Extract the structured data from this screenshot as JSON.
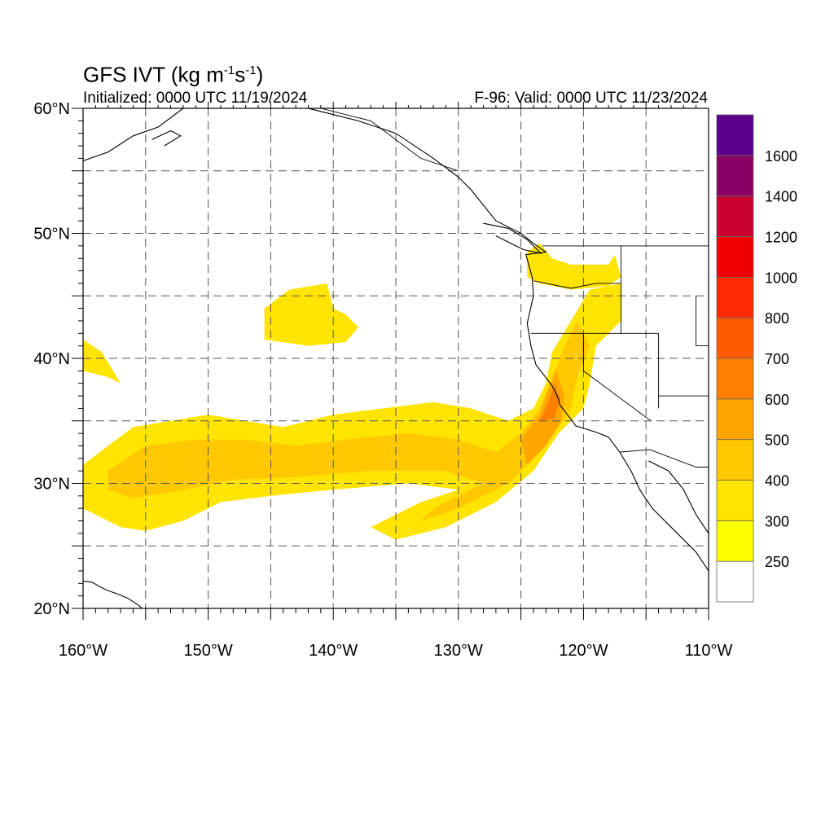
{
  "title": {
    "main": "GFS IVT (kg m",
    "exp1": "-1",
    "mid": "s",
    "exp2": "-1",
    "close": ")"
  },
  "init_label": "Initialized: 0000 UTC 11/19/2024",
  "valid_label": "F-96: Valid: 0000 UTC 11/23/2024",
  "map": {
    "lon_range": [
      -160,
      -110
    ],
    "lat_range": [
      20,
      60
    ],
    "grid": true,
    "lon_ticks": [
      {
        "lon": -160,
        "label": "160°W"
      },
      {
        "lon": -150,
        "label": "150°W"
      },
      {
        "lon": -140,
        "label": "140°W"
      },
      {
        "lon": -130,
        "label": "130°W"
      },
      {
        "lon": -120,
        "label": "120°W"
      },
      {
        "lon": -110,
        "label": "110°W"
      }
    ],
    "lat_ticks": [
      {
        "lat": 20,
        "label": "20°N"
      },
      {
        "lat": 30,
        "label": "30°N"
      },
      {
        "lat": 40,
        "label": "40°N"
      },
      {
        "lat": 50,
        "label": "50°N"
      },
      {
        "lat": 60,
        "label": "60°N"
      }
    ]
  },
  "colorbar": {
    "colors": [
      "#ffffff",
      "#ffff00",
      "#ffe400",
      "#ffc800",
      "#ffa500",
      "#ff8000",
      "#ff5a00",
      "#ff2800",
      "#f00000",
      "#c80032",
      "#8b0064",
      "#5a008c"
    ],
    "labels": [
      "250",
      "300",
      "400",
      "500",
      "600",
      "700",
      "800",
      "1000",
      "1200",
      "1400",
      "1600"
    ]
  },
  "ivt_fields": [
    {
      "name": "main-atmospheric-river",
      "value": 300,
      "points": [
        [
          -160,
          31.5
        ],
        [
          -158,
          33
        ],
        [
          -156,
          34.5
        ],
        [
          -153,
          35
        ],
        [
          -150,
          35.5
        ],
        [
          -147,
          35
        ],
        [
          -144,
          34.5
        ],
        [
          -140,
          35.5
        ],
        [
          -136,
          36
        ],
        [
          -132,
          36.5
        ],
        [
          -129,
          36
        ],
        [
          -126,
          35
        ],
        [
          -124,
          36
        ],
        [
          -123,
          38
        ],
        [
          -122.5,
          40.5
        ],
        [
          -121,
          43
        ],
        [
          -119.5,
          45.5
        ],
        [
          -117,
          46
        ],
        [
          -117,
          43
        ],
        [
          -119,
          41
        ],
        [
          -119.5,
          38
        ],
        [
          -120,
          36
        ],
        [
          -122,
          34
        ],
        [
          -124,
          31
        ],
        [
          -127,
          28.5
        ],
        [
          -131,
          26.5
        ],
        [
          -135,
          25.5
        ],
        [
          -137,
          26.5
        ],
        [
          -133,
          28.5
        ],
        [
          -130,
          29.5
        ],
        [
          -134,
          30
        ],
        [
          -140,
          29.5
        ],
        [
          -145,
          29
        ],
        [
          -149,
          28.5
        ],
        [
          -152,
          27
        ],
        [
          -155,
          26.2
        ],
        [
          -157,
          26.5
        ],
        [
          -159,
          27.5
        ],
        [
          -160,
          28
        ]
      ]
    },
    {
      "name": "core-400",
      "value": 400,
      "points": [
        [
          -158,
          31
        ],
        [
          -155,
          33
        ],
        [
          -151,
          33.5
        ],
        [
          -147,
          33.5
        ],
        [
          -143,
          33
        ],
        [
          -139,
          33.5
        ],
        [
          -134,
          34
        ],
        [
          -130,
          33.5
        ],
        [
          -127,
          32.5
        ],
        [
          -125,
          34
        ],
        [
          -123.5,
          36
        ],
        [
          -122.5,
          38.5
        ],
        [
          -121.5,
          41
        ],
        [
          -120.5,
          43
        ],
        [
          -119.5,
          41
        ],
        [
          -120.5,
          38.5
        ],
        [
          -121,
          36
        ],
        [
          -123,
          33
        ],
        [
          -126,
          30
        ],
        [
          -130,
          28
        ],
        [
          -133,
          27
        ],
        [
          -132,
          28
        ],
        [
          -128,
          30
        ],
        [
          -131,
          31
        ],
        [
          -137,
          31
        ],
        [
          -143,
          30.5
        ],
        [
          -148,
          30.3
        ],
        [
          -152,
          29.5
        ],
        [
          -156,
          28.8
        ],
        [
          -158,
          29.5
        ]
      ]
    },
    {
      "name": "core-500",
      "value": 500,
      "points": [
        [
          -125,
          33.5
        ],
        [
          -123.5,
          35.5
        ],
        [
          -122.8,
          37.5
        ],
        [
          -122.2,
          39
        ],
        [
          -121.5,
          37
        ],
        [
          -121.8,
          35
        ],
        [
          -123,
          33
        ],
        [
          -124.5,
          31.5
        ]
      ]
    },
    {
      "name": "core-600",
      "value": 600,
      "points": [
        [
          -123.5,
          35
        ],
        [
          -122.8,
          36.5
        ],
        [
          -122.3,
          38
        ],
        [
          -121.9,
          36.8
        ],
        [
          -122.3,
          35.2
        ]
      ]
    },
    {
      "name": "subtropical-blob",
      "value": 300,
      "points": [
        [
          -145.5,
          44
        ],
        [
          -143.5,
          45.5
        ],
        [
          -140.5,
          46
        ],
        [
          -140,
          44
        ],
        [
          -139,
          43.5
        ],
        [
          -138,
          42.5
        ],
        [
          -139,
          41.3
        ],
        [
          -142,
          41
        ],
        [
          -145.5,
          41.5
        ]
      ]
    },
    {
      "name": "west-edge-blob",
      "value": 300,
      "points": [
        [
          -160,
          41.5
        ],
        [
          -158.5,
          40.5
        ],
        [
          -157,
          38
        ],
        [
          -158,
          38.5
        ],
        [
          -160,
          39
        ]
      ]
    },
    {
      "name": "pacific-northwest-blob",
      "value": 300,
      "points": [
        [
          -124.5,
          48.5
        ],
        [
          -123.5,
          49.2
        ],
        [
          -122.5,
          48
        ],
        [
          -121,
          47.5
        ],
        [
          -118,
          47.5
        ],
        [
          -117.5,
          48.3
        ],
        [
          -117,
          46.5
        ],
        [
          -118,
          45.8
        ],
        [
          -121,
          45.5
        ],
        [
          -123.5,
          46
        ],
        [
          -124.5,
          46.5
        ]
      ]
    }
  ],
  "coastlines": [
    {
      "name": "north-american-coast",
      "points": [
        [
          -142,
          60
        ],
        [
          -138,
          59
        ],
        [
          -135,
          58
        ],
        [
          -132,
          56
        ],
        [
          -130,
          54.5
        ],
        [
          -129,
          53.5
        ],
        [
          -127,
          51
        ],
        [
          -125,
          50
        ],
        [
          -124,
          49.2
        ],
        [
          -123,
          48.5
        ],
        [
          -124.6,
          48.3
        ],
        [
          -124.1,
          46.5
        ],
        [
          -124,
          45
        ],
        [
          -124.5,
          42.8
        ],
        [
          -124.2,
          41
        ],
        [
          -123.8,
          39.5
        ],
        [
          -122.5,
          37.8
        ],
        [
          -122,
          36.8
        ],
        [
          -121.9,
          36.3
        ],
        [
          -120.6,
          34.6
        ],
        [
          -119,
          34.1
        ],
        [
          -118,
          33.7
        ],
        [
          -117.1,
          32.5
        ],
        [
          -116.2,
          31
        ],
        [
          -115.5,
          29.5
        ],
        [
          -114.5,
          28
        ],
        [
          -113,
          26.5
        ],
        [
          -111,
          24.5
        ],
        [
          -110,
          23
        ]
      ]
    },
    {
      "name": "gulf-of-california-east-shore",
      "points": [
        [
          -114.8,
          31.8
        ],
        [
          -113.2,
          31
        ],
        [
          -112,
          29.5
        ],
        [
          -111,
          27.5
        ],
        [
          -110,
          26
        ]
      ]
    },
    {
      "name": "vancouver-island",
      "points": [
        [
          -128,
          50.8
        ],
        [
          -126,
          50.4
        ],
        [
          -124.5,
          49.5
        ],
        [
          -123.4,
          48.4
        ],
        [
          -124.8,
          48.7
        ],
        [
          -127,
          49.8
        ]
      ]
    },
    {
      "name": "alaska-peninsula",
      "points": [
        [
          -160,
          55.8
        ],
        [
          -158,
          56.5
        ],
        [
          -156,
          57.8
        ],
        [
          -154,
          58.5
        ],
        [
          -152,
          60
        ]
      ]
    },
    {
      "name": "kodiak-island",
      "points": [
        [
          -154.5,
          57.5
        ],
        [
          -153,
          58.2
        ],
        [
          -152.2,
          57.8
        ],
        [
          -153.5,
          57
        ]
      ]
    },
    {
      "name": "hawaii-islands",
      "points": [
        [
          -160.2,
          22.2
        ],
        [
          -159.3,
          22.1
        ],
        [
          -158.2,
          21.5
        ],
        [
          -157.1,
          21.1
        ],
        [
          -156.4,
          20.8
        ],
        [
          -155.5,
          20.2
        ],
        [
          -154.8,
          19.5
        ]
      ]
    }
  ],
  "borders": [
    {
      "name": "canada-us-border",
      "points": [
        [
          -123.3,
          49
        ],
        [
          -110,
          49
        ]
      ]
    },
    {
      "name": "alaska-canada-border",
      "points": [
        [
          -141,
          60
        ],
        [
          -137,
          59
        ],
        [
          -133,
          56
        ],
        [
          -130,
          55
        ]
      ]
    },
    {
      "name": "us-mexico-border",
      "points": [
        [
          -117.1,
          32.5
        ],
        [
          -114.7,
          32.7
        ],
        [
          -111,
          31.3
        ],
        [
          -110,
          31.3
        ]
      ]
    },
    {
      "name": "washington-oregon-line",
      "points": [
        [
          -124,
          46.2
        ],
        [
          -121,
          45.6
        ],
        [
          -119,
          46
        ],
        [
          -117,
          46
        ]
      ]
    },
    {
      "name": "idaho-west-line",
      "points": [
        [
          -117,
          49
        ],
        [
          -117,
          42
        ]
      ]
    },
    {
      "name": "oregon-california-line",
      "points": [
        [
          -124.2,
          42
        ],
        [
          -114,
          42
        ]
      ]
    },
    {
      "name": "california-nevada-line",
      "points": [
        [
          -120,
          42
        ],
        [
          -120,
          39
        ],
        [
          -114.6,
          35
        ]
      ]
    },
    {
      "name": "nevada-east-line",
      "points": [
        [
          -114,
          42
        ],
        [
          -114,
          36
        ]
      ]
    },
    {
      "name": "utah-line",
      "points": [
        [
          -111,
          45
        ],
        [
          -111,
          41
        ],
        [
          -110,
          41
        ]
      ]
    },
    {
      "name": "arizona-line",
      "points": [
        [
          -114,
          37
        ],
        [
          -110,
          37
        ]
      ]
    }
  ]
}
